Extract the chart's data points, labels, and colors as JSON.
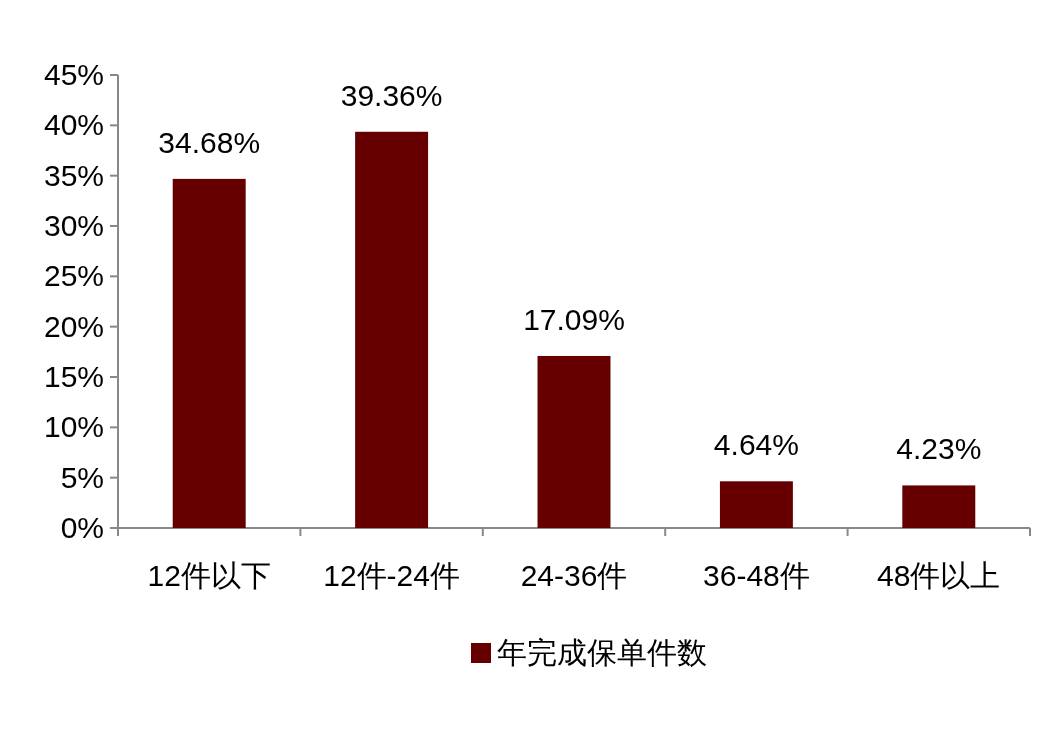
{
  "chart_data": {
    "type": "bar",
    "categories": [
      "12件以下",
      "12件-24件",
      "24-36件",
      "36-48件",
      "48件以上"
    ],
    "series": [
      {
        "name": "年完成保单件数",
        "color": "#660000",
        "values": [
          34.68,
          39.36,
          17.09,
          4.64,
          4.23
        ],
        "value_labels": [
          "34.68%",
          "39.36%",
          "17.09%",
          "4.64%",
          "4.23%"
        ]
      }
    ],
    "ylim": [
      0,
      45
    ],
    "yticks": [
      {
        "value": 0,
        "label": "0%"
      },
      {
        "value": 5,
        "label": "5%"
      },
      {
        "value": 10,
        "label": "10%"
      },
      {
        "value": 15,
        "label": "15%"
      },
      {
        "value": 20,
        "label": "20%"
      },
      {
        "value": 25,
        "label": "25%"
      },
      {
        "value": 30,
        "label": "30%"
      },
      {
        "value": 35,
        "label": "35%"
      },
      {
        "value": 40,
        "label": "40%"
      },
      {
        "value": 45,
        "label": "45%"
      }
    ],
    "grid": false,
    "legend": "bottom"
  }
}
